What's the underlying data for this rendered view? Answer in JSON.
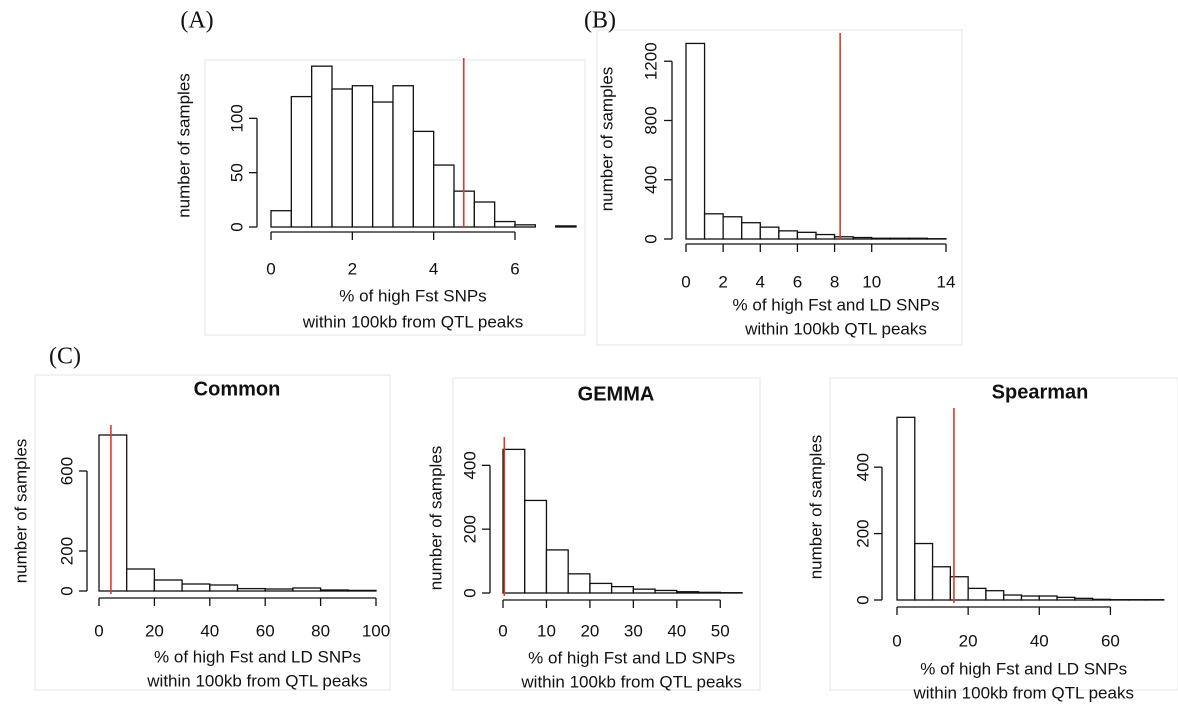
{
  "chart_data": [
    {
      "type": "histogram",
      "panel_label": "(A)",
      "ylabel": "number of samples",
      "xlabel": [
        "% of high Fst SNPs",
        "within 100kb from QTL peaks"
      ],
      "bins": [
        0,
        0.5,
        1,
        1.5,
        2,
        2.5,
        3,
        3.5,
        4,
        4.5,
        5,
        5.5,
        6,
        6.5,
        7,
        7.5
      ],
      "values": [
        15,
        120,
        148,
        127,
        130,
        115,
        130,
        88,
        57,
        33,
        23,
        5,
        2,
        0,
        1
      ],
      "xlim": [
        0,
        7.5
      ],
      "ylim": [
        0,
        150
      ],
      "xticks": [
        0,
        2,
        4,
        6
      ],
      "yticks": [
        0,
        50,
        100
      ],
      "vline": 4.74,
      "vline_color": "#e03a2a",
      "color": "#ffffff"
    },
    {
      "type": "histogram",
      "panel_label": "(B)",
      "ylabel": "number of samples",
      "xlabel": [
        "% of high Fst and LD SNPs",
        "within 100kb QTL peaks"
      ],
      "bins": [
        0,
        1,
        2,
        3,
        4,
        5,
        6,
        7,
        8,
        9,
        10,
        11,
        12,
        13,
        14
      ],
      "values": [
        1320,
        170,
        150,
        110,
        80,
        55,
        45,
        30,
        15,
        10,
        5,
        5,
        5,
        2
      ],
      "xlim": [
        0,
        14
      ],
      "ylim": [
        0,
        1350
      ],
      "xticks": [
        0,
        2,
        4,
        6,
        8,
        10,
        14
      ],
      "yticks": [
        0,
        400,
        800,
        1200
      ],
      "vline": 8.3,
      "vline_color": "#e03a2a",
      "color": "#ffffff"
    },
    {
      "type": "histogram",
      "panel_label": "(C)",
      "title": "Common",
      "ylabel": "number of samples",
      "xlabel": [
        "% of high Fst and LD SNPs",
        "within 100kb from QTL peaks"
      ],
      "bins": [
        0,
        10,
        20,
        30,
        40,
        50,
        60,
        70,
        80,
        90,
        100
      ],
      "values": [
        780,
        110,
        55,
        35,
        30,
        12,
        10,
        15,
        5,
        3
      ],
      "xlim": [
        0,
        100
      ],
      "ylim": [
        0,
        800
      ],
      "xticks": [
        0,
        20,
        40,
        60,
        80,
        100
      ],
      "yticks": [
        0,
        200,
        600
      ],
      "vline": 4.3,
      "vline_color": "#e03a2a",
      "color": "#ffffff"
    },
    {
      "type": "histogram",
      "title": "GEMMA",
      "ylabel": "number of samples",
      "xlabel": [
        "% of high Fst and LD SNPs",
        "within 100kb from QTL peaks"
      ],
      "bins": [
        0,
        5,
        10,
        15,
        20,
        25,
        30,
        35,
        40,
        45,
        50,
        55
      ],
      "values": [
        450,
        290,
        135,
        60,
        30,
        20,
        12,
        8,
        4,
        2,
        1
      ],
      "xlim": [
        0,
        55
      ],
      "ylim": [
        0,
        470
      ],
      "xticks": [
        0,
        10,
        20,
        30,
        40,
        50
      ],
      "yticks": [
        0,
        200,
        400
      ],
      "vline": 0.3,
      "vline_color": "#e03a2a",
      "color": "#ffffff"
    },
    {
      "type": "histogram",
      "title": "Spearman",
      "ylabel": "number of samples",
      "xlabel": [
        "% of high Fst and LD SNPs",
        "within 100kb from QTL peaks"
      ],
      "bins": [
        0,
        5,
        10,
        15,
        20,
        25,
        30,
        35,
        40,
        45,
        50,
        55,
        60,
        65,
        70,
        75
      ],
      "values": [
        550,
        170,
        100,
        70,
        35,
        28,
        15,
        12,
        12,
        8,
        5,
        2,
        1,
        1,
        1
      ],
      "xlim": [
        0,
        79
      ],
      "ylim": [
        0,
        560
      ],
      "xticks": [
        0,
        20,
        40,
        60
      ],
      "yticks": [
        0,
        200,
        400
      ],
      "vline": 16,
      "vline_color": "#e03a2a",
      "color": "#ffffff"
    }
  ]
}
